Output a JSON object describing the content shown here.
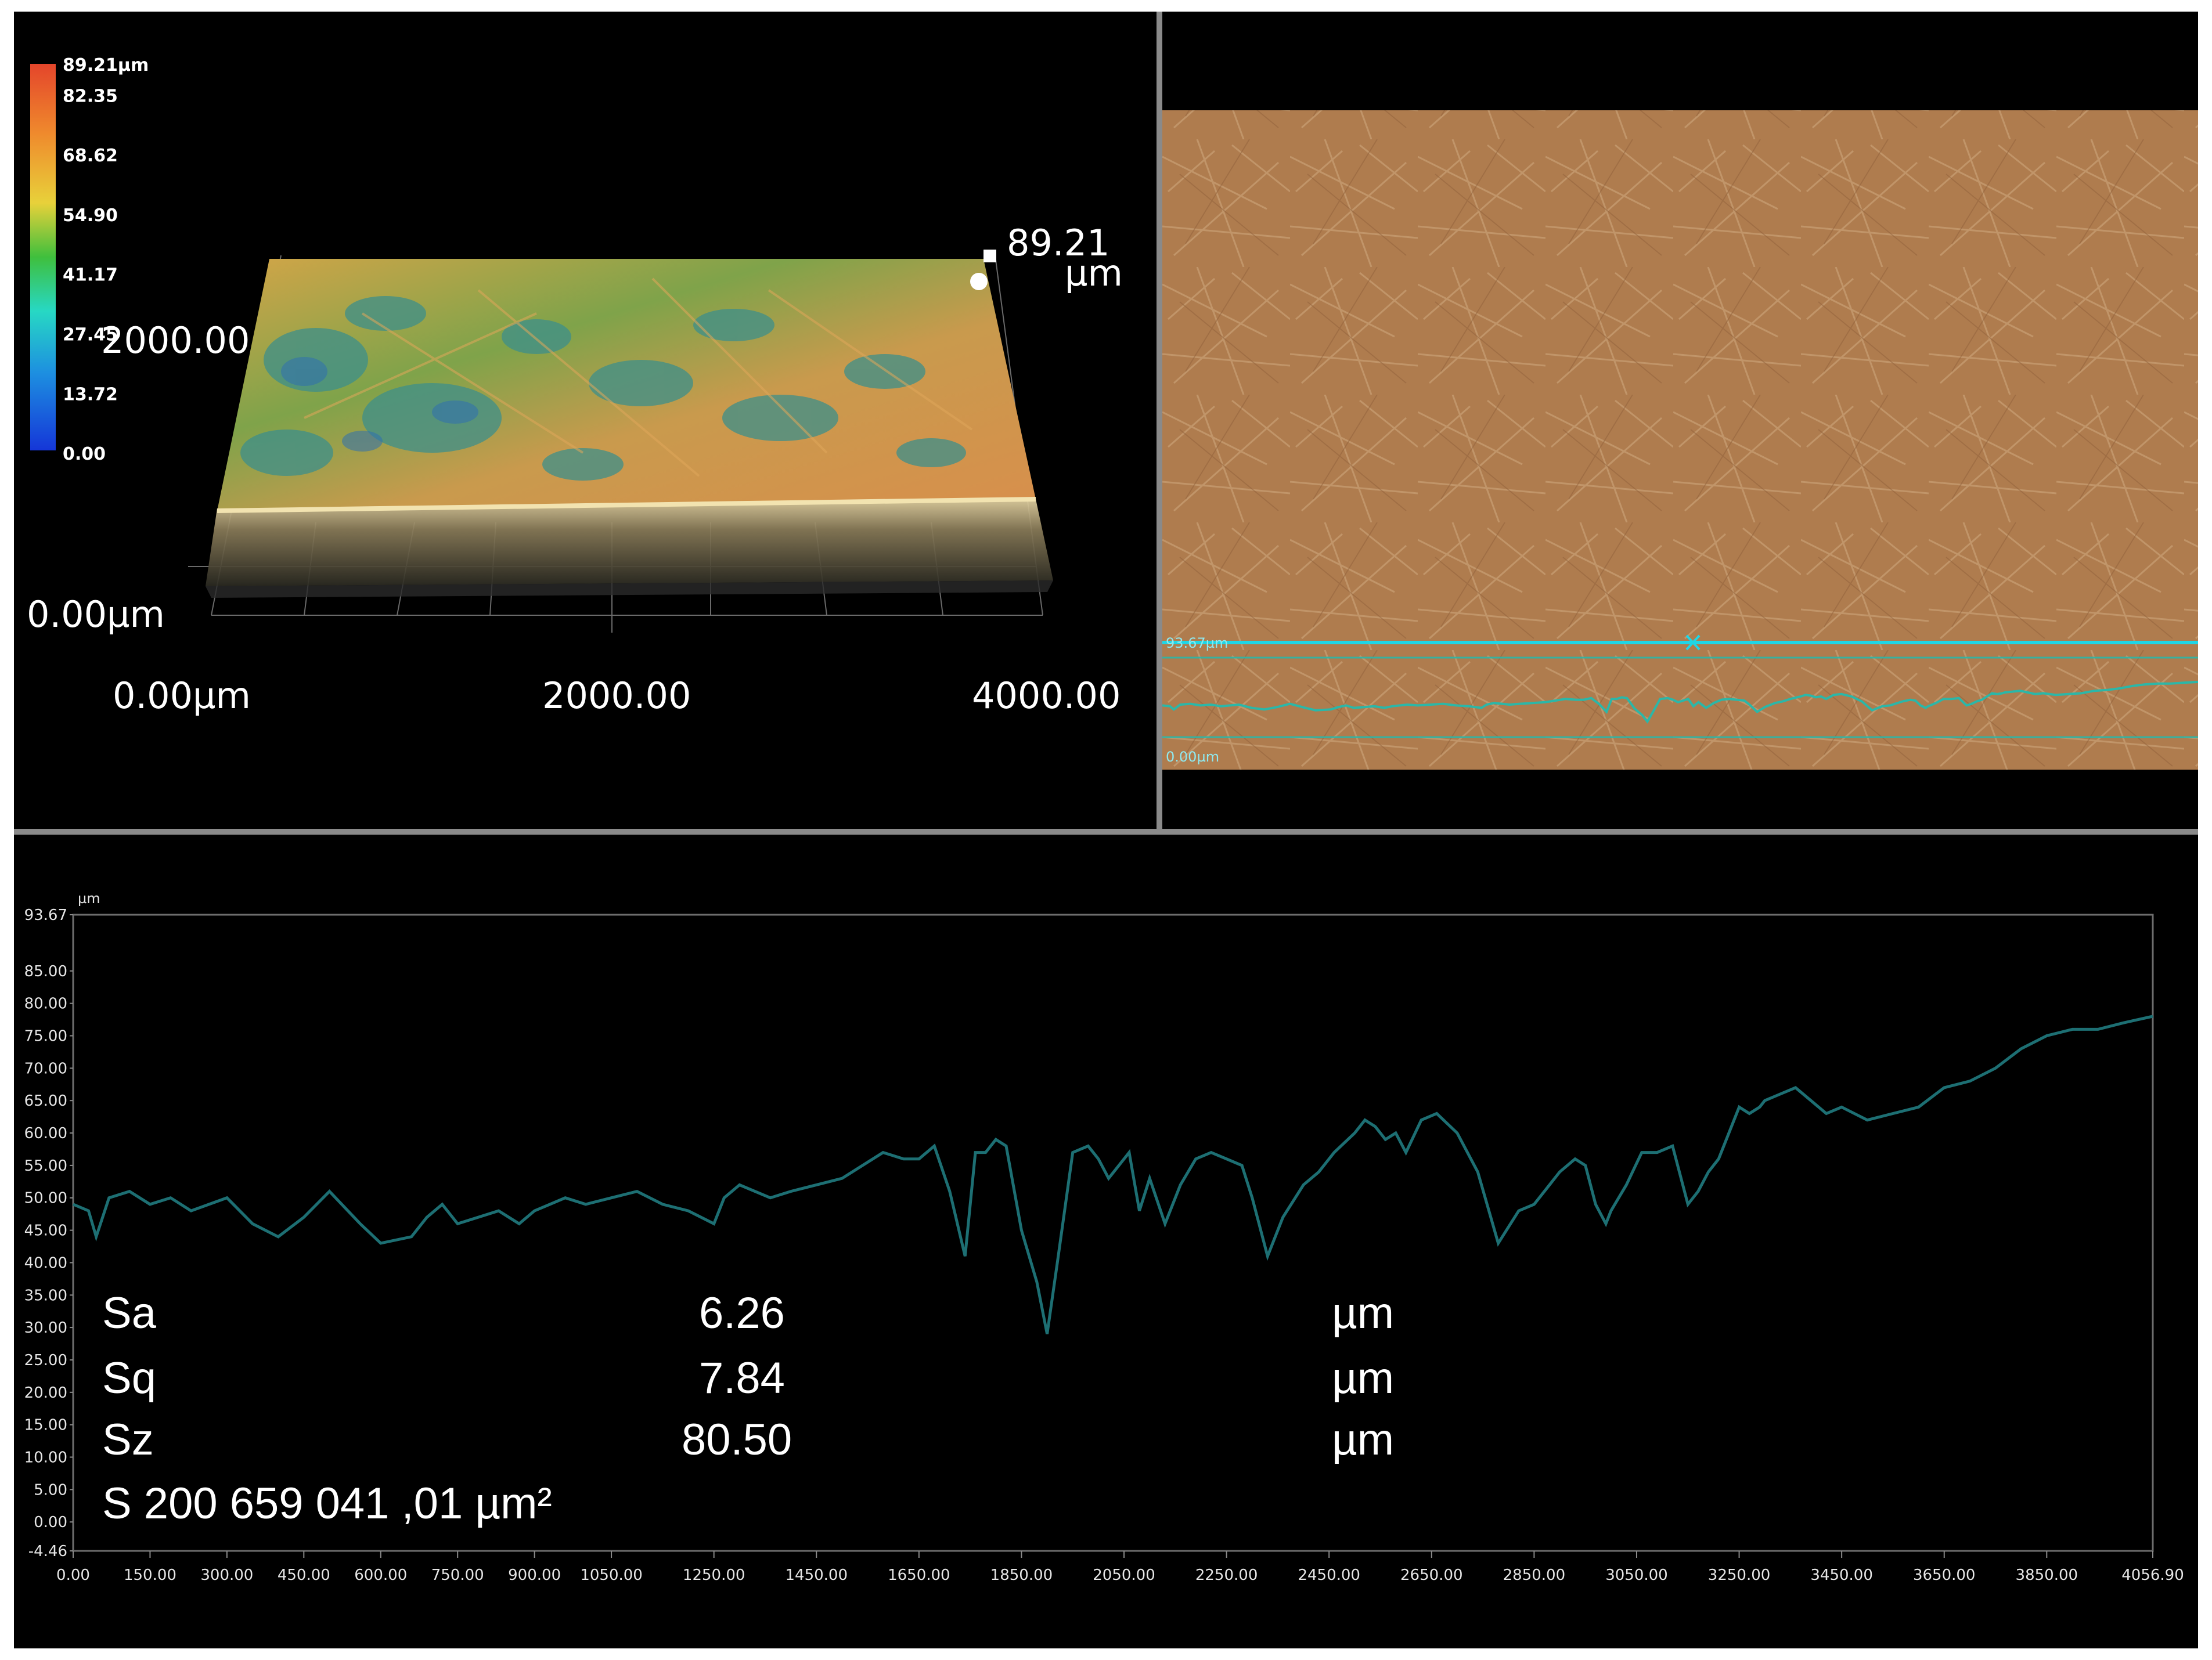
{
  "colorbar": {
    "ticks": [
      "89.21µm",
      "82.35",
      "68.62",
      "54.90",
      "41.17",
      "27.45",
      "13.72",
      "0.00"
    ],
    "stops": [
      "#e4452b",
      "#ef8a2d",
      "#e8d13a",
      "#3fbf3d",
      "#27d8c4",
      "#1d8fe0",
      "#1536d8"
    ]
  },
  "view3d": {
    "peak_value": "89.21",
    "peak_unit": "µm",
    "x_ticks": [
      "0.00µm",
      "2000.00",
      "4000.00"
    ],
    "y_tick": "2000.00",
    "z_tick": "0.00µm"
  },
  "photo": {
    "profile_line_color": "#1fd6e6",
    "scale_label_top": "93.67µm",
    "scale_label_bottom": "0.00µm"
  },
  "profile": {
    "unit": "µm",
    "stats": [
      {
        "name": "Sa",
        "value": "6.26",
        "unit": "µm"
      },
      {
        "name": "Sq",
        "value": "7.84",
        "unit": "µm"
      },
      {
        "name": "Sz",
        "value": "80.50",
        "unit": "µm"
      }
    ],
    "area_text": "S 200 659 041 ,01 µm²"
  },
  "chart_data": {
    "type": "line",
    "title": "",
    "xlabel": "",
    "ylabel": "µm",
    "xlim": [
      0,
      4056.9
    ],
    "ylim": [
      -4.46,
      93.67
    ],
    "y_ticks": [
      "93.67",
      "85.00",
      "80.00",
      "75.00",
      "70.00",
      "65.00",
      "60.00",
      "55.00",
      "50.00",
      "45.00",
      "40.00",
      "35.00",
      "30.00",
      "25.00",
      "20.00",
      "15.00",
      "10.00",
      "5.00",
      "0.00",
      "-4.46"
    ],
    "x_ticks": [
      "0.00",
      "150.00",
      "300.00",
      "450.00",
      "600.00",
      "750.00",
      "900.00",
      "1050.00",
      "1250.00",
      "1450.00",
      "1650.00",
      "1850.00",
      "2050.00",
      "2250.00",
      "2450.00",
      "2650.00",
      "2850.00",
      "3050.00",
      "3250.00",
      "3450.00",
      "3650.00",
      "3850.00",
      "4056.90"
    ],
    "line_color": "#1d6f73",
    "series": [
      {
        "x": [
          0,
          30,
          45,
          70,
          110,
          150,
          190,
          230,
          300,
          350,
          400,
          450,
          500,
          560,
          600,
          660,
          690,
          720,
          750,
          790,
          830,
          870,
          900,
          930,
          960,
          1000,
          1050,
          1100,
          1150,
          1200,
          1250,
          1270,
          1300,
          1330,
          1360,
          1400,
          1450,
          1500,
          1540,
          1580,
          1620,
          1650,
          1680,
          1710,
          1740,
          1760,
          1780,
          1800,
          1820,
          1850,
          1880,
          1900,
          1920,
          1950,
          1980,
          2000,
          2020,
          2040,
          2060,
          2080,
          2100,
          2130,
          2160,
          2190,
          2220,
          2250,
          2280,
          2300,
          2330,
          2360,
          2400,
          2430,
          2460,
          2500,
          2520,
          2540,
          2560,
          2580,
          2600,
          2630,
          2660,
          2700,
          2740,
          2780,
          2820,
          2850,
          2880,
          2900,
          2930,
          2950,
          2970,
          2990,
          3000,
          3030,
          3060,
          3090,
          3120,
          3150,
          3170,
          3190,
          3210,
          3230,
          3250,
          3270,
          3290,
          3300,
          3330,
          3360,
          3390,
          3420,
          3450,
          3500,
          3550,
          3600,
          3650,
          3700,
          3750,
          3800,
          3850,
          3900,
          3950,
          4000,
          4056.9
        ],
        "y": [
          49,
          48,
          44,
          50,
          51,
          49,
          50,
          48,
          50,
          46,
          44,
          47,
          51,
          46,
          43,
          44,
          47,
          49,
          46,
          47,
          48,
          46,
          48,
          49,
          50,
          49,
          50,
          51,
          49,
          48,
          46,
          50,
          52,
          51,
          50,
          51,
          52,
          53,
          55,
          57,
          56,
          56,
          58,
          51,
          41,
          57,
          57,
          59,
          58,
          45,
          37,
          29,
          40,
          57,
          58,
          56,
          53,
          55,
          57,
          48,
          53,
          46,
          52,
          56,
          57,
          56,
          55,
          50,
          41,
          47,
          52,
          54,
          57,
          60,
          62,
          61,
          59,
          60,
          57,
          62,
          63,
          60,
          54,
          43,
          48,
          49,
          52,
          54,
          56,
          55,
          49,
          46,
          48,
          52,
          57,
          57,
          58,
          49,
          51,
          54,
          56,
          60,
          64,
          63,
          64,
          65,
          66,
          67,
          65,
          63,
          64,
          62,
          63,
          64,
          67,
          68,
          70,
          73,
          75,
          76,
          76,
          77,
          78
        ]
      }
    ]
  }
}
